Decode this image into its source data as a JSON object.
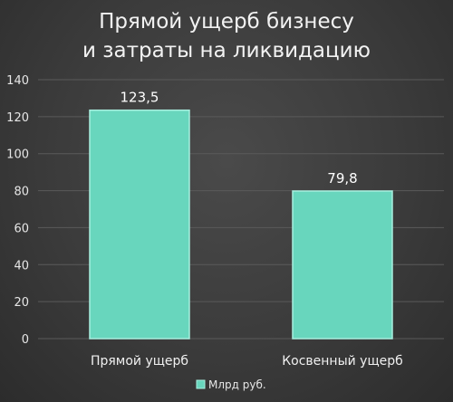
{
  "chart_data": {
    "type": "bar",
    "title": [
      "Прямой ущерб бизнесу",
      "и затраты на ликвидацию"
    ],
    "categories": [
      "Прямой ущерб",
      "Косвенный ущерб"
    ],
    "series": [
      {
        "name": "Млрд руб.",
        "values": [
          123.5,
          79.8
        ],
        "labels": [
          "123,5",
          "79,8"
        ]
      }
    ],
    "ylim": [
      0,
      140
    ],
    "yticks": [
      0,
      20,
      40,
      60,
      80,
      100,
      120,
      140
    ],
    "grid": true,
    "legend": "bottom",
    "colors": {
      "bar": "#68d6bd",
      "bar_edge": "#a8efdf",
      "grid": "#5a5a5a"
    }
  }
}
